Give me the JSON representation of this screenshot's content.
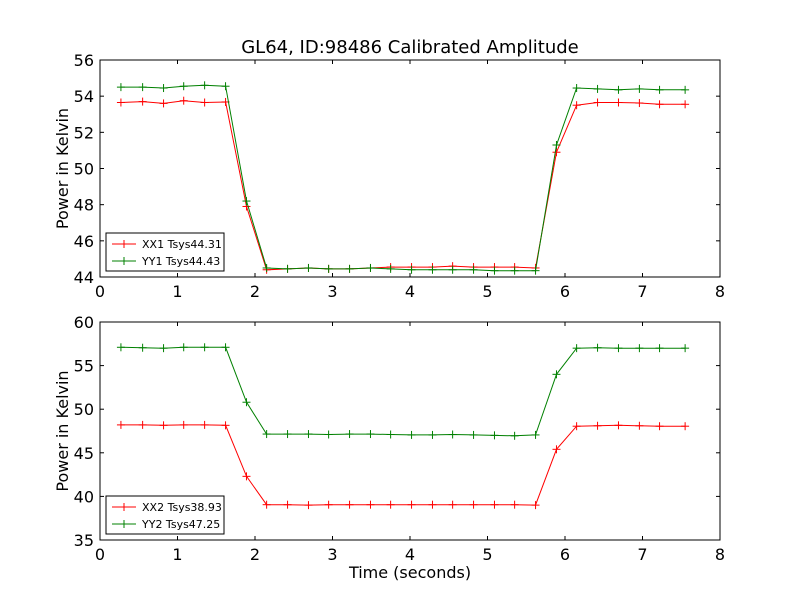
{
  "title": "GL64, ID:98486 Calibrated Amplitude",
  "colors": {
    "red": "#ff0000",
    "green": "#008000"
  },
  "chart_data": [
    {
      "type": "line",
      "ylabel": "Power in Kelvin",
      "xlabel": "",
      "xlim": [
        0,
        8
      ],
      "ylim": [
        44,
        56
      ],
      "xticks": [
        "0",
        "1",
        "2",
        "3",
        "4",
        "5",
        "6",
        "7",
        "8"
      ],
      "yticks": [
        "44",
        "46",
        "48",
        "50",
        "52",
        "54",
        "56"
      ],
      "legend": "lower-left",
      "x": [
        0.27,
        0.55,
        0.82,
        1.08,
        1.35,
        1.62,
        1.89,
        2.15,
        2.42,
        2.69,
        2.95,
        3.22,
        3.49,
        3.75,
        4.02,
        4.29,
        4.55,
        4.82,
        5.09,
        5.35,
        5.62,
        5.89,
        6.15,
        6.42,
        6.69,
        6.96,
        7.22,
        7.55
      ],
      "series": [
        {
          "name": "XX1 Tsys44.31",
          "color": "#ff0000",
          "values": [
            53.65,
            53.7,
            53.6,
            53.75,
            53.65,
            53.68,
            47.9,
            44.4,
            44.45,
            44.5,
            44.45,
            44.45,
            44.5,
            44.55,
            44.55,
            44.55,
            44.6,
            44.55,
            44.55,
            44.55,
            44.5,
            50.9,
            53.5,
            53.65,
            53.65,
            53.62,
            53.55,
            53.55
          ]
        },
        {
          "name": "YY1 Tsys44.43",
          "color": "#008000",
          "values": [
            54.5,
            54.5,
            54.45,
            54.55,
            54.6,
            54.55,
            48.2,
            44.5,
            44.45,
            44.5,
            44.45,
            44.45,
            44.5,
            44.45,
            44.4,
            44.4,
            44.4,
            44.4,
            44.35,
            44.35,
            44.35,
            51.3,
            54.45,
            54.4,
            54.35,
            54.4,
            54.35,
            54.35
          ]
        }
      ]
    },
    {
      "type": "line",
      "ylabel": "Power in Kelvin",
      "xlabel": "Time (seconds)",
      "xlim": [
        0,
        8
      ],
      "ylim": [
        35,
        60
      ],
      "xticks": [
        "0",
        "1",
        "2",
        "3",
        "4",
        "5",
        "6",
        "7",
        "8"
      ],
      "yticks": [
        "35",
        "40",
        "45",
        "50",
        "55",
        "60"
      ],
      "legend": "lower-left",
      "x": [
        0.27,
        0.55,
        0.82,
        1.08,
        1.35,
        1.62,
        1.89,
        2.15,
        2.42,
        2.69,
        2.95,
        3.22,
        3.49,
        3.75,
        4.02,
        4.29,
        4.55,
        4.82,
        5.09,
        5.35,
        5.62,
        5.89,
        6.15,
        6.42,
        6.69,
        6.96,
        7.22,
        7.55
      ],
      "series": [
        {
          "name": "XX2 Tsys38.93",
          "color": "#ff0000",
          "values": [
            48.2,
            48.2,
            48.15,
            48.2,
            48.2,
            48.15,
            42.3,
            39.05,
            39.05,
            39.0,
            39.05,
            39.05,
            39.05,
            39.05,
            39.05,
            39.05,
            39.05,
            39.05,
            39.05,
            39.05,
            39.0,
            45.4,
            48.05,
            48.1,
            48.15,
            48.1,
            48.05,
            48.05
          ]
        },
        {
          "name": "YY2 Tsys47.25",
          "color": "#008000",
          "values": [
            57.1,
            57.05,
            57.0,
            57.1,
            57.1,
            57.1,
            50.8,
            47.15,
            47.15,
            47.15,
            47.1,
            47.15,
            47.15,
            47.1,
            47.05,
            47.05,
            47.1,
            47.05,
            47.0,
            46.95,
            47.05,
            54.0,
            57.0,
            57.05,
            57.0,
            57.0,
            57.0,
            57.0
          ]
        }
      ]
    }
  ]
}
